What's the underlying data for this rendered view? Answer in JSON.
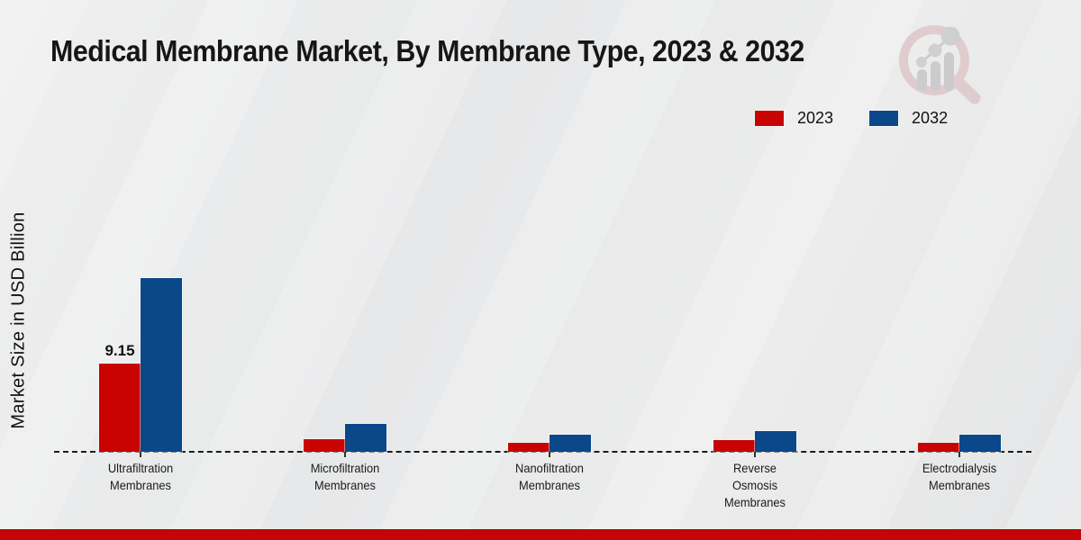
{
  "chart_data": {
    "type": "bar",
    "title": "Medical Membrane Market, By Membrane Type, 2023 & 2032",
    "xlabel": "",
    "ylabel": "Market Size in USD Billion",
    "categories": [
      "Ultrafiltration Membranes",
      "Microfiltration Membranes",
      "Nanofiltration Membranes",
      "Reverse Osmosis Membranes",
      "Electrodialysis Membranes"
    ],
    "category_lines": [
      [
        "Ultrafiltration",
        "Membranes"
      ],
      [
        "Microfiltration",
        "Membranes"
      ],
      [
        "Nanofiltration",
        "Membranes"
      ],
      [
        "Reverse",
        "Osmosis",
        "Membranes"
      ],
      [
        "Electrodialysis",
        "Membranes"
      ]
    ],
    "series": [
      {
        "name": "2023",
        "color": "#c80301",
        "values": [
          9.15,
          1.3,
          0.95,
          1.25,
          0.95
        ]
      },
      {
        "name": "2032",
        "color": "#0a488a",
        "values": [
          18.0,
          2.9,
          1.8,
          2.15,
          1.8
        ]
      }
    ],
    "annotations": [
      {
        "series": "2023",
        "category": "Ultrafiltration Membranes",
        "text": "9.15"
      }
    ],
    "ylim": [
      0,
      22
    ],
    "grid": false,
    "legend_position": "top-right",
    "x_axis_style": "dashed"
  },
  "branding": {
    "watermark_icon": "magnifier-bar-chart-logo",
    "footer_accent_color": "#c50404",
    "watermark_ring_color": "#cf9aa0",
    "watermark_bar_color": "#9a9aa0"
  }
}
